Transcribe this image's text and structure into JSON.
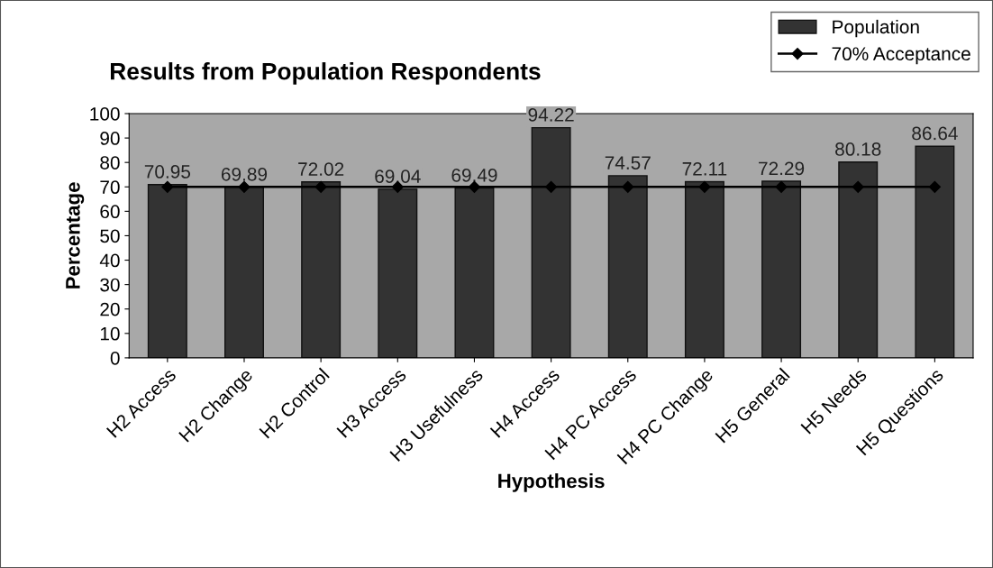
{
  "chart_data": {
    "type": "bar",
    "title": "Results from Population Respondents",
    "xlabel": "Hypothesis",
    "ylabel": "Percentage",
    "categories": [
      "H2 Access",
      "H2 Change",
      "H2 Control",
      "H3 Access",
      "H3 Usefulness",
      "H4 Access",
      "H4 PC Access",
      "H4 PC Change",
      "H5 General",
      "H5 Needs",
      "H5 Questions"
    ],
    "series": [
      {
        "name": "Population",
        "color": "#333333",
        "values": [
          70.95,
          69.89,
          72.02,
          69.04,
          69.49,
          94.22,
          74.57,
          72.11,
          72.29,
          80.18,
          86.64
        ],
        "value_labels": [
          "70.95",
          "69.89",
          "72.02",
          "69.04",
          "69.49",
          "94.22",
          "74.57",
          "72.11",
          "72.29",
          "80.18",
          "86.64"
        ]
      },
      {
        "name": "70% Acceptance",
        "type": "line",
        "color": "#000000",
        "marker": "diamond",
        "values": [
          70,
          70,
          70,
          70,
          70,
          70,
          70,
          70,
          70,
          70,
          70
        ]
      }
    ],
    "ylim": [
      0,
      100
    ],
    "yticks": [
      0,
      10,
      20,
      30,
      40,
      50,
      60,
      70,
      80,
      90,
      100
    ],
    "grid": false,
    "legend": "top right"
  }
}
